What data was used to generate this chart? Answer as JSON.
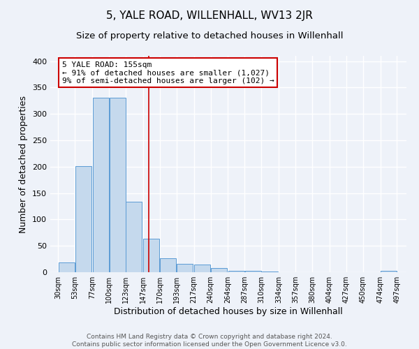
{
  "title": "5, YALE ROAD, WILLENHALL, WV13 2JR",
  "subtitle": "Size of property relative to detached houses in Willenhall",
  "xlabel": "Distribution of detached houses by size in Willenhall",
  "ylabel": "Number of detached properties",
  "bar_left_edges": [
    30,
    53,
    77,
    100,
    123,
    147,
    170,
    193,
    217,
    240,
    264,
    287,
    310,
    334,
    357,
    380,
    404,
    427,
    450,
    474
  ],
  "bar_heights": [
    18,
    201,
    330,
    330,
    133,
    63,
    27,
    16,
    14,
    8,
    2,
    2,
    1,
    0,
    0,
    0,
    0,
    0,
    0,
    3
  ],
  "bin_width": 23,
  "bar_color": "#c5d9ed",
  "bar_edge_color": "#5b9bd5",
  "vline_color": "#cc0000",
  "vline_x": 155,
  "annotation_text_line1": "5 YALE ROAD: 155sqm",
  "annotation_text_line2": "← 91% of detached houses are smaller (1,027)",
  "annotation_text_line3": "9% of semi-detached houses are larger (102) →",
  "annotation_box_color": "#cc0000",
  "annotation_box_facecolor": "white",
  "tick_labels": [
    "30sqm",
    "53sqm",
    "77sqm",
    "100sqm",
    "123sqm",
    "147sqm",
    "170sqm",
    "193sqm",
    "217sqm",
    "240sqm",
    "264sqm",
    "287sqm",
    "310sqm",
    "334sqm",
    "357sqm",
    "380sqm",
    "404sqm",
    "427sqm",
    "450sqm",
    "474sqm",
    "497sqm"
  ],
  "tick_positions": [
    30,
    53,
    77,
    100,
    123,
    147,
    170,
    193,
    217,
    240,
    264,
    287,
    310,
    334,
    357,
    380,
    404,
    427,
    450,
    474,
    497
  ],
  "ylim": [
    0,
    410
  ],
  "xlim": [
    19,
    510
  ],
  "footer_line1": "Contains HM Land Registry data © Crown copyright and database right 2024.",
  "footer_line2": "Contains public sector information licensed under the Open Government Licence v3.0.",
  "background_color": "#eef2f9",
  "grid_color": "#ffffff",
  "title_fontsize": 11,
  "subtitle_fontsize": 9.5,
  "axis_label_fontsize": 9,
  "tick_fontsize": 7,
  "footer_fontsize": 6.5,
  "annotation_fontsize": 8
}
